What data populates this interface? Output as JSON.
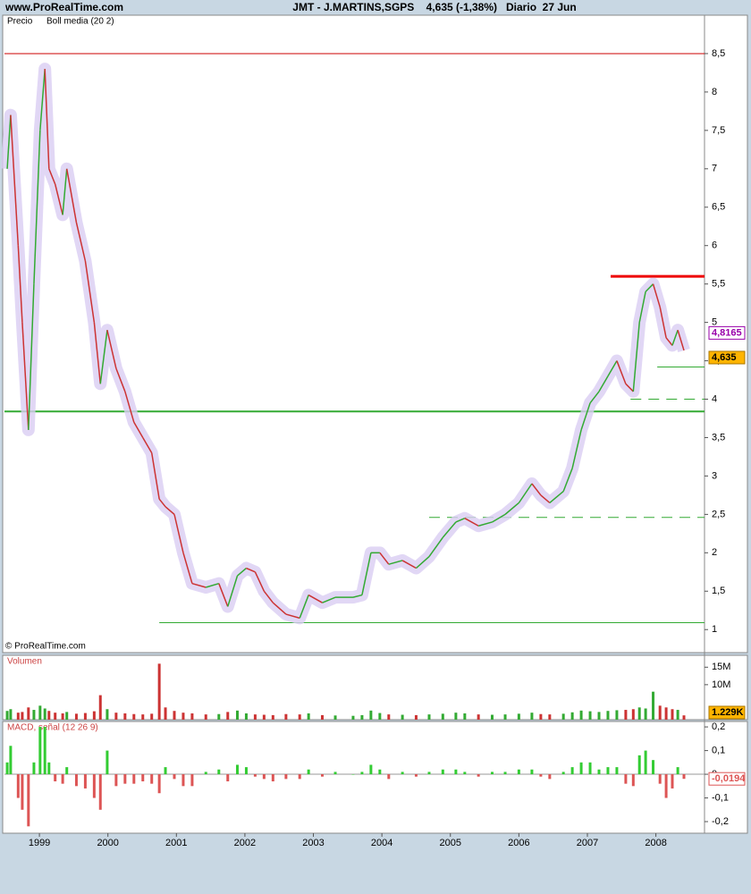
{
  "header": {
    "site": "www.ProRealTime.com",
    "title": "JMT - J.MARTINS,SGPS    4,635 (-1,38%)   Diario  27 Jun"
  },
  "copyright": "© ProRealTime.com",
  "chart_data": [
    {
      "type": "line",
      "label": "Precio",
      "indicator": {
        "name": "Boll media (20 2)",
        "color": "#9900aa",
        "last": 4.8165,
        "last_label": "4,8165"
      },
      "xlim": [
        1998.49,
        2008.71
      ],
      "xticks": [
        1999,
        2000,
        2001,
        2002,
        2003,
        2004,
        2005,
        2006,
        2007,
        2008
      ],
      "ylim": [
        0.7,
        9.0
      ],
      "yticks": [
        {
          "value": 1,
          "label": "1"
        },
        {
          "value": 1.5,
          "label": "1,5"
        },
        2,
        {
          "value": 2.5,
          "label": "2,5"
        },
        3,
        {
          "value": 3.5,
          "label": "3,5"
        },
        4,
        {
          "value": 4.5,
          "label": "4,5"
        },
        5,
        {
          "value": 5.5,
          "label": "5,5"
        },
        6,
        {
          "value": 6.5,
          "label": "6,5"
        },
        7,
        {
          "value": 7.5,
          "label": "7,5"
        },
        8,
        {
          "value": 8.5,
          "label": "8,5"
        }
      ],
      "x": [
        1998.53,
        1998.58,
        1998.69,
        1998.75,
        1998.84,
        1998.92,
        1999.01,
        1999.08,
        1999.14,
        1999.23,
        1999.34,
        1999.4,
        1999.54,
        1999.67,
        1999.8,
        1999.89,
        1999.99,
        2000.12,
        2000.25,
        2000.38,
        2000.51,
        2000.64,
        2000.75,
        2000.84,
        2000.97,
        2001.1,
        2001.23,
        2001.43,
        2001.62,
        2001.75,
        2001.89,
        2002.02,
        2002.15,
        2002.28,
        2002.41,
        2002.6,
        2002.8,
        2002.93,
        2003.13,
        2003.32,
        2003.58,
        2003.71,
        2003.84,
        2003.97,
        2004.1,
        2004.3,
        2004.5,
        2004.69,
        2004.89,
        2005.08,
        2005.21,
        2005.41,
        2005.61,
        2005.8,
        2006.0,
        2006.19,
        2006.32,
        2006.45,
        2006.65,
        2006.78,
        2006.91,
        2007.04,
        2007.17,
        2007.3,
        2007.43,
        2007.56,
        2007.67,
        2007.76,
        2007.85,
        2007.96,
        2008.06,
        2008.15,
        2008.24,
        2008.32,
        2008.41
      ],
      "series": [
        {
          "name": "Precio",
          "color": "#33aa33",
          "down_color": "#cc3333",
          "band_color": "#d9cdf2",
          "values": [
            7.0,
            7.7,
            6.0,
            5.0,
            3.6,
            5.5,
            7.5,
            8.3,
            7.0,
            6.8,
            6.4,
            7.0,
            6.3,
            5.8,
            5.0,
            4.2,
            4.9,
            4.4,
            4.1,
            3.7,
            3.5,
            3.3,
            2.7,
            2.6,
            2.5,
            2.0,
            1.6,
            1.55,
            1.6,
            1.3,
            1.7,
            1.8,
            1.75,
            1.5,
            1.35,
            1.2,
            1.15,
            1.45,
            1.35,
            1.42,
            1.42,
            1.45,
            2.0,
            2.0,
            1.85,
            1.9,
            1.8,
            1.95,
            2.2,
            2.4,
            2.45,
            2.35,
            2.4,
            2.5,
            2.65,
            2.9,
            2.75,
            2.65,
            2.8,
            3.1,
            3.6,
            3.95,
            4.1,
            4.3,
            4.5,
            4.2,
            4.1,
            5.0,
            5.4,
            5.5,
            5.2,
            4.8,
            4.7,
            4.9,
            4.635
          ],
          "last_label": "4,635",
          "last_color": "#ffb400"
        }
      ],
      "levels": [
        {
          "y": 8.5,
          "color": "#cc0000",
          "width": 1,
          "dash": false,
          "from": 1998.49
        },
        {
          "y": 3.84,
          "color": "#33aa33",
          "width": 2,
          "dash": false,
          "from": 1998.49
        },
        {
          "y": 5.6,
          "color": "#ee0000",
          "width": 3,
          "dash": false,
          "from": 2007.34
        },
        {
          "y": 2.46,
          "color": "#33aa33",
          "width": 1,
          "dash": true,
          "from": 2004.69
        },
        {
          "y": 1.09,
          "color": "#33aa33",
          "width": 1,
          "dash": false,
          "from": 2000.75
        },
        {
          "y": 4.42,
          "color": "#33aa33",
          "width": 1,
          "dash": false,
          "from": 2008.02
        },
        {
          "y": 4.0,
          "color": "#33aa33",
          "width": 1,
          "dash": true,
          "from": 2007.63
        }
      ]
    },
    {
      "type": "bar",
      "label": "Volumen",
      "ylim": [
        0,
        18400000
      ],
      "yticks": [
        {
          "value": 15000000,
          "label": "15M"
        },
        {
          "value": 10000000,
          "label": "10M"
        }
      ],
      "values": [
        2500000,
        3000000,
        2000000,
        2200000,
        3500000,
        2800000,
        4000000,
        3200000,
        2500000,
        2000000,
        1800000,
        2200000,
        1700000,
        1900000,
        2400000,
        7000000,
        3000000,
        2000000,
        1800000,
        1600000,
        1500000,
        1700000,
        16000000,
        3500000,
        2500000,
        2000000,
        1800000,
        1500000,
        1600000,
        2200000,
        2600000,
        1800000,
        1500000,
        1400000,
        1300000,
        1600000,
        1500000,
        1800000,
        1300000,
        1200000,
        1100000,
        1300000,
        2600000,
        1900000,
        1500000,
        1400000,
        1300000,
        1500000,
        1700000,
        2000000,
        1800000,
        1500000,
        1400000,
        1500000,
        1700000,
        2000000,
        1600000,
        1500000,
        1700000,
        2100000,
        2600000,
        2400000,
        2200000,
        2500000,
        2700000,
        2800000,
        3000000,
        3500000,
        3200000,
        8000000,
        4000000,
        3500000,
        3000000,
        2800000,
        1229000
      ],
      "last_label": "1.229K",
      "last_color": "#ffb400"
    },
    {
      "type": "bar",
      "label": "MACD, señal (12 26 9)",
      "ylim": [
        -0.249,
        0.223
      ],
      "yticks": [
        {
          "value": 0.2,
          "label": "0,2"
        },
        {
          "value": 0.1,
          "label": "0,1"
        },
        0,
        {
          "value": -0.1,
          "label": "-0,1"
        },
        {
          "value": -0.2,
          "label": "-0,2"
        }
      ],
      "values": [
        0.05,
        0.12,
        -0.1,
        -0.15,
        -0.22,
        0.05,
        0.2,
        0.2,
        0.05,
        -0.03,
        -0.04,
        0.03,
        -0.05,
        -0.06,
        -0.1,
        -0.15,
        0.1,
        -0.05,
        -0.04,
        -0.04,
        -0.03,
        -0.04,
        -0.08,
        0.03,
        -0.02,
        -0.05,
        -0.05,
        0.01,
        0.02,
        -0.03,
        0.04,
        0.03,
        -0.01,
        -0.02,
        -0.03,
        -0.02,
        -0.02,
        0.02,
        -0.01,
        0.01,
        0,
        0.01,
        0.04,
        0.02,
        -0.02,
        0.01,
        -0.01,
        0.01,
        0.02,
        0.02,
        0.01,
        -0.01,
        0.01,
        0.01,
        0.02,
        0.02,
        -0.01,
        -0.02,
        0.01,
        0.03,
        0.05,
        0.05,
        0.02,
        0.03,
        0.03,
        -0.04,
        -0.05,
        0.08,
        0.1,
        0.06,
        -0.04,
        -0.1,
        -0.06,
        0.03,
        -0.0194
      ],
      "color": "#33cc33",
      "down_color": "#dd5555",
      "last_label": "-0,0194",
      "last_color": "#ffffff"
    }
  ]
}
